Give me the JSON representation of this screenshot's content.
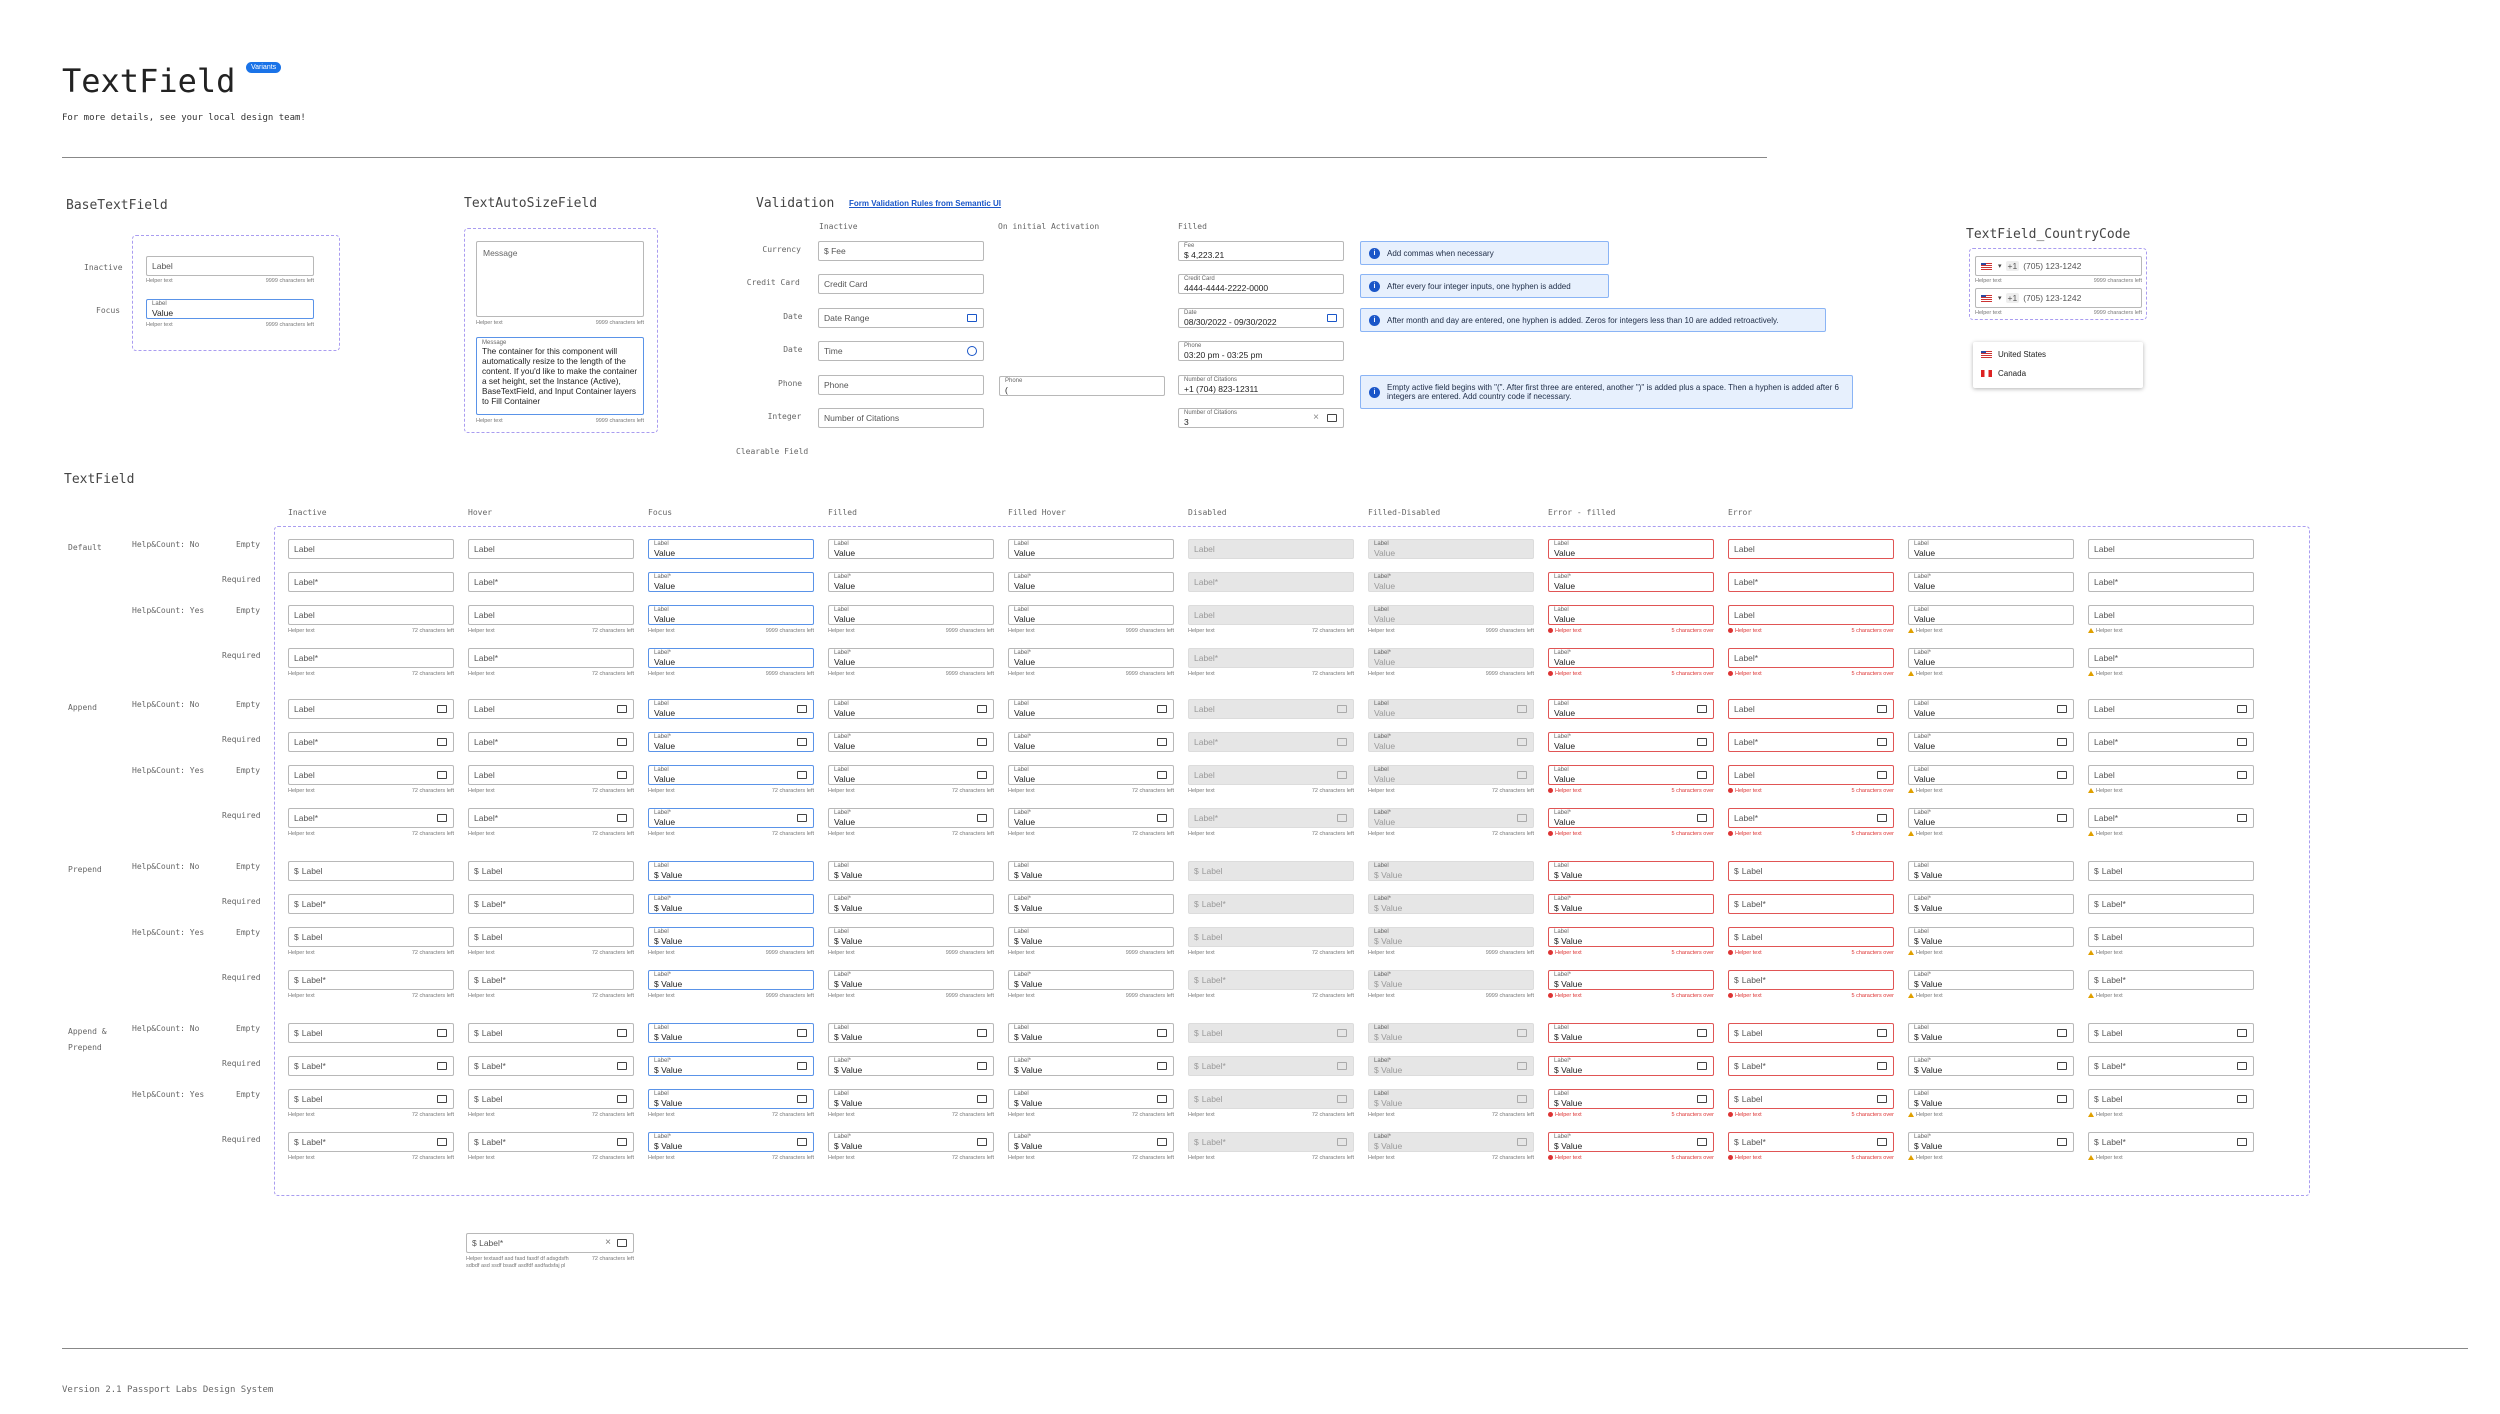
{
  "header": {
    "title": "TextField",
    "badge": "Variants",
    "subtitle": "For more details, see your local design team!"
  },
  "footer": {
    "version": "Version 2.1  Passport Labs Design System"
  },
  "base": {
    "title": "BaseTextField",
    "inactive": "Inactive",
    "focus": "Focus",
    "label": "Label",
    "value": "Value",
    "helper": "Helper text",
    "count": "9999 characters left"
  },
  "autosize": {
    "title": "TextAutoSizeField",
    "placeholder": "Message",
    "label": "Message",
    "text": "The container for this component will automatically resize to the length of the content. If you'd like to make the container a set height, set the Instance (Active), BaseTextField, and Input Container layers to Fill Container",
    "helper": "Helper text",
    "count": "9999 characters left"
  },
  "validation": {
    "title": "Validation",
    "link": "Form Validation Rules from Semantic UI",
    "col_inactive": "Inactive",
    "col_initial": "On initial Activation",
    "col_filled": "Filled",
    "rows": [
      {
        "label": "Currency",
        "placeholder": "$ Fee",
        "flabel": "Fee",
        "fvalue": "$ 4,223.21",
        "note": "Add commas when necessary"
      },
      {
        "label": "Credit Card",
        "placeholder": "Credit Card",
        "flabel": "Credit Card",
        "fvalue": "4444-4444-2222-0000",
        "note": "After every four integer inputs, one hyphen is added"
      },
      {
        "label": "Date",
        "placeholder": "Date Range",
        "flabel": "Date",
        "fvalue": "08/30/2022 - 09/30/2022",
        "note": "After month and day are entered, one hyphen is added. Zeros for integers less than 10 are added retroactively."
      },
      {
        "label": "Date",
        "placeholder": "Time",
        "flabel": "Phone",
        "fvalue": "03:20 pm - 03:25 pm",
        "note": ""
      },
      {
        "label": "Phone",
        "placeholder": "Phone",
        "flabel": "Number of Citations",
        "fvalue": "+1 (704) 823-12311",
        "note": "Empty active field begins with \"(\". After first three are entered, another \")\" is added plus a space. Then a hyphen is added after 6 integers are entered. Add country code if necessary."
      },
      {
        "label": "Integer",
        "placeholder": "Number of Citations",
        "flabel": "Number of Citations",
        "fvalue": "3",
        "note": ""
      }
    ],
    "initial_label": "Phone",
    "initial_value": "(",
    "clearable": "Clearable Field"
  },
  "country": {
    "title": "TextField_CountryCode",
    "code": "+1",
    "phone": "(705) 123-1242",
    "helper": "Helper text",
    "count": "9999 characters left",
    "options": [
      "United States",
      "Canada"
    ]
  },
  "textfield": {
    "title": "TextField",
    "columns": [
      "Inactive",
      "Hover",
      "Focus",
      "Filled",
      "Filled Hover",
      "Disabled",
      "Filled-Disabled",
      "Error - filled",
      "Error",
      "",
      ""
    ],
    "groups": [
      "Default",
      "Append",
      "Prepend",
      "Append &\nPrepend"
    ],
    "help_no": "Help&Count: No",
    "help_yes": "Help&Count: Yes",
    "empty": "Empty",
    "required": "Required",
    "label": "Label",
    "label_req": "Label*",
    "value": "Value",
    "dollar": "$",
    "helper": "Helper text",
    "count72": "72 characters left",
    "count9999": "9999 characters left",
    "over": "5 characters over"
  },
  "long_example": {
    "label": "$ Label*",
    "helper": "Helper textasdf asd fasd fasdf df adsgdsfh sdbdf asd ssdf bsadf asdfdf asdfadsfaj pl",
    "count": "72 characters left"
  }
}
